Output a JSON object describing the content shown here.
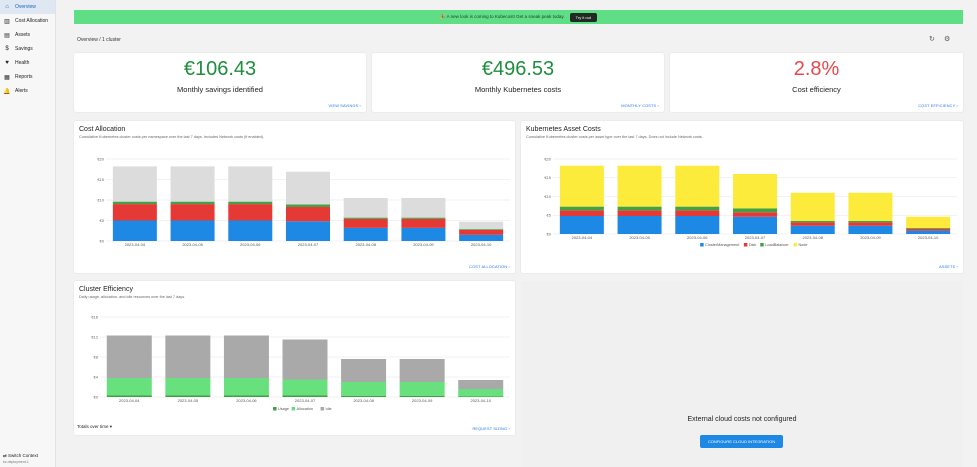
{
  "sidebar": {
    "items": [
      {
        "label": "Overview",
        "icon": "home-icon",
        "glyph": "⌂",
        "active": true
      },
      {
        "label": "Cost Allocation",
        "icon": "bar-chart-icon",
        "glyph": "▥"
      },
      {
        "label": "Assets",
        "icon": "table-icon",
        "glyph": "▤"
      },
      {
        "label": "Savings",
        "icon": "dollar-icon",
        "glyph": "$"
      },
      {
        "label": "Health",
        "icon": "heart-icon",
        "glyph": "♥"
      },
      {
        "label": "Reports",
        "icon": "report-icon",
        "glyph": "▦"
      },
      {
        "label": "Alerts",
        "icon": "bell-icon",
        "glyph": "🔔"
      }
    ],
    "switch_context": "Switch Context",
    "switch_sub": "kc-deployment-1"
  },
  "banner": {
    "text": "🎉 A new look is coming to Kubecost! Get a sneak peak today.",
    "button": "Try it out"
  },
  "breadcrumb": "Overview / 1 cluster",
  "stats": [
    {
      "value": "€106.43",
      "label": "Monthly savings identified",
      "link": "VIEW SAVINGS  ›",
      "color": "#1e8e3e"
    },
    {
      "value": "€496.53",
      "label": "Monthly Kubernetes costs",
      "link": "MONTHLY COSTS  ›",
      "color": "#1e8e3e"
    },
    {
      "value": "2.8%",
      "label": "Cost efficiency",
      "link": "COST EFFICIENCY  ›",
      "color": "#e5484d"
    }
  ],
  "cost_allocation": {
    "title": "Cost Allocation",
    "subtitle": "Cumulative Kubernetes cluster costs per namespace over the last 7 days. Includes Network costs (if enabled).",
    "link": "COST ALLOCATION  ›"
  },
  "asset_costs": {
    "title": "Kubernetes Asset Costs",
    "subtitle": "Cumulative Kubernetes cluster costs per asset type over the last 7 days. Does not include Network costs.",
    "link": "ASSETS  ›"
  },
  "efficiency": {
    "title": "Cluster Efficiency",
    "subtitle": "Daily usage, allocation, and idle resources over the last 7 days.",
    "link": "REQUEST SIZING  ›",
    "totals": "Totals over time ▾"
  },
  "cloud": {
    "message": "External cloud costs not configured",
    "button": "CONFIGURE CLOUD INTEGRATION"
  },
  "colors": {
    "blue": "#1e88e5",
    "red": "#e53935",
    "green": "#43a047",
    "gray": "#dcdcdc",
    "yellow": "#fdeb3b",
    "lightgreen": "#69e07e",
    "darkgray": "#a9a9a9"
  },
  "chart_data": [
    {
      "type": "bar",
      "stacked": true,
      "categories": [
        "2023-04-04",
        "2023-04-05",
        "2023-04-06",
        "2023-04-07",
        "2023-04-08",
        "2023-04-09",
        "2023-04-10"
      ],
      "yticks": [
        "€0",
        "€5",
        "€10",
        "€15",
        "€20"
      ],
      "ylim": [
        0,
        20
      ],
      "series": [
        {
          "color": "#1e88e5",
          "values": [
            5,
            5,
            5,
            4.8,
            3.2,
            3.2,
            1.5
          ]
        },
        {
          "color": "#e53935",
          "values": [
            4,
            4,
            4,
            3.5,
            2.2,
            2.2,
            1.2
          ]
        },
        {
          "color": "#43a047",
          "values": [
            0.6,
            0.6,
            0.6,
            0.6,
            0.3,
            0.3,
            0.2
          ]
        },
        {
          "color": "#dcdcdc",
          "values": [
            8.6,
            8.6,
            8.6,
            8,
            4.8,
            4.8,
            1.8
          ]
        }
      ]
    },
    {
      "type": "bar",
      "stacked": true,
      "categories": [
        "2023-04-04",
        "2023-04-05",
        "2023-04-06",
        "2023-04-07",
        "2023-04-08",
        "2023-04-09",
        "2023-04-10"
      ],
      "yticks": [
        "€0",
        "€5",
        "€10",
        "€15",
        "€20"
      ],
      "ylim": [
        0,
        20
      ],
      "legend": [
        "ClusterManagement",
        "Disk",
        "LoadBalancer",
        "Node"
      ],
      "series": [
        {
          "name": "ClusterManagement",
          "color": "#1e88e5",
          "values": [
            4.8,
            4.8,
            4.8,
            4.6,
            2.2,
            2.2,
            0.9
          ]
        },
        {
          "name": "Disk",
          "color": "#e53935",
          "values": [
            1.5,
            1.5,
            1.5,
            1.2,
            0.9,
            0.9,
            0.5
          ]
        },
        {
          "name": "LoadBalancer",
          "color": "#43a047",
          "values": [
            1,
            1,
            1,
            1,
            0.4,
            0.4,
            0.2
          ]
        },
        {
          "name": "Node",
          "color": "#fdeb3b",
          "values": [
            10.9,
            10.9,
            10.9,
            9.2,
            7.5,
            7.5,
            3
          ]
        }
      ]
    },
    {
      "type": "bar",
      "stacked": true,
      "categories": [
        "2023-04-04",
        "2023-04-05",
        "2023-04-06",
        "2023-04-07",
        "2023-04-08",
        "2023-04-09",
        "2023-04-10"
      ],
      "yticks": [
        "€0",
        "€4",
        "€8",
        "€12",
        "€16"
      ],
      "ylim": [
        0,
        16
      ],
      "legend": [
        "Usage",
        "Allocation",
        "Idle"
      ],
      "series": [
        {
          "name": "Usage",
          "color": "#43a047",
          "values": [
            0.3,
            0.3,
            0.3,
            0.3,
            0.2,
            0.2,
            0.1
          ]
        },
        {
          "name": "Allocation",
          "color": "#69e07e",
          "values": [
            3.5,
            3.5,
            3.5,
            3.2,
            2.8,
            2.8,
            1.5
          ]
        },
        {
          "name": "Idle",
          "color": "#a9a9a9",
          "values": [
            8.5,
            8.5,
            8.5,
            8,
            4.6,
            4.6,
            1.8
          ]
        }
      ]
    }
  ]
}
